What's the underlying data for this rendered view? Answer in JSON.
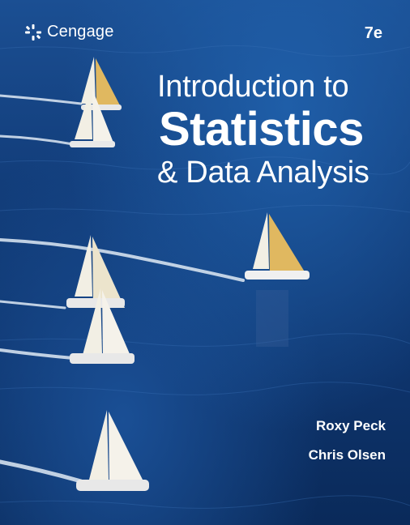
{
  "publisher": {
    "name": "Cengage",
    "logo_icon": "cengage-logo-icon"
  },
  "edition": "7e",
  "title": {
    "line1": "Introduction to",
    "line2": "Statistics",
    "line3": "& Data Analysis"
  },
  "authors": [
    "Roxy Peck",
    "Chris Olsen"
  ],
  "colors": {
    "sea": "#123d7a",
    "text": "#ffffff",
    "sail_white": "#f2efe4",
    "sail_gold": "#e0b860"
  }
}
